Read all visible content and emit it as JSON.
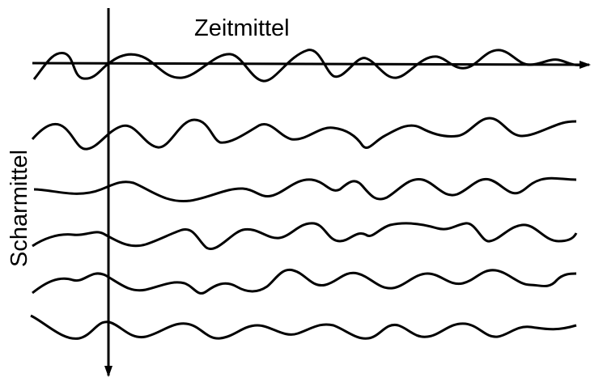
{
  "labels": {
    "time_average": "Zeitmittel",
    "ensemble_average": "Scharmittel"
  },
  "colors": {
    "stroke": "#000000",
    "background": "#ffffff"
  }
}
